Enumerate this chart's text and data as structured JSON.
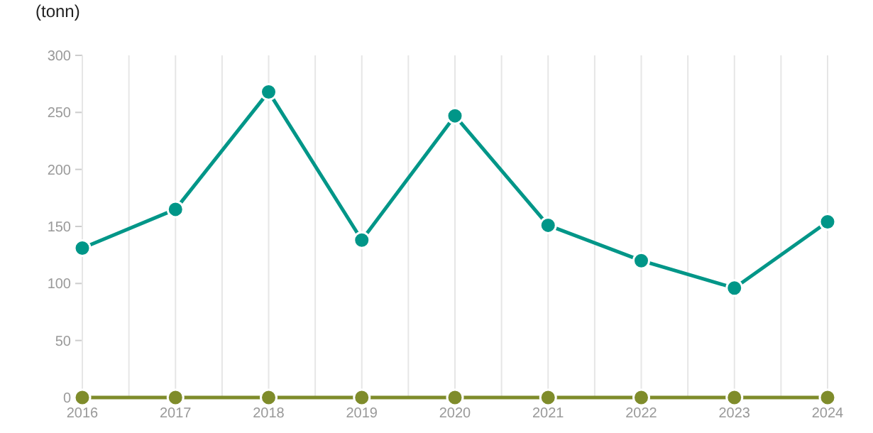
{
  "chart_data": {
    "type": "line",
    "ylabel": "(tonn)",
    "x": [
      2016,
      2017,
      2018,
      2019,
      2020,
      2021,
      2022,
      2023,
      2024
    ],
    "series": [
      {
        "color": "#009688",
        "values": [
          131,
          165,
          268,
          138,
          247,
          151,
          120,
          96,
          154
        ]
      },
      {
        "color": "#7f8c2b",
        "values": [
          0,
          0,
          0,
          0,
          0,
          0,
          0,
          0,
          0
        ]
      }
    ],
    "xlim": [
      2016,
      2024
    ],
    "xticks": [
      2016,
      {
        "value": 2016.5,
        "label": null
      },
      2017,
      {
        "value": 2017.5,
        "label": null
      },
      2018,
      {
        "value": 2018.5,
        "label": null
      },
      2019,
      {
        "value": 2019.5,
        "label": null
      },
      2020,
      {
        "value": 2020.5,
        "label": null
      },
      2021,
      {
        "value": 2021.5,
        "label": null
      },
      2022,
      {
        "value": 2022.5,
        "label": null
      },
      2023,
      {
        "value": 2023.5,
        "label": null
      },
      2024
    ],
    "ylim": [
      0,
      300
    ],
    "yticks": [
      0,
      50,
      100,
      150,
      200,
      250,
      300
    ],
    "grid": "x",
    "marker": "circle",
    "line_style": "solid"
  }
}
